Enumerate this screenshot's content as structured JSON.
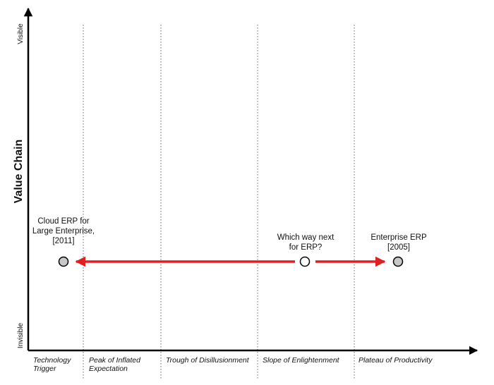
{
  "axes": {
    "y_title": "Value Chain",
    "y_top_label": "Visible",
    "y_bottom_label": "Invisible"
  },
  "phases": [
    "Technology Trigger",
    "Peak of Inflated Expectation",
    "Trough of Disillusionment",
    "Slope of Enlightenment",
    "Plateau of Productivity"
  ],
  "nodes": {
    "cloud_erp": {
      "lines": [
        "Cloud ERP for",
        "Large Enterprise,",
        "[2011]"
      ]
    },
    "which_way": {
      "lines": [
        "Which way next",
        "for ERP?"
      ]
    },
    "enterprise_erp": {
      "lines": [
        "Enterprise ERP",
        "[2005]"
      ]
    }
  },
  "colors": {
    "arrow": "#e02020",
    "axis": "#000000",
    "node_fill_gray": "#c8c8c8",
    "node_fill_white": "#ffffff",
    "divider": "#666666"
  }
}
